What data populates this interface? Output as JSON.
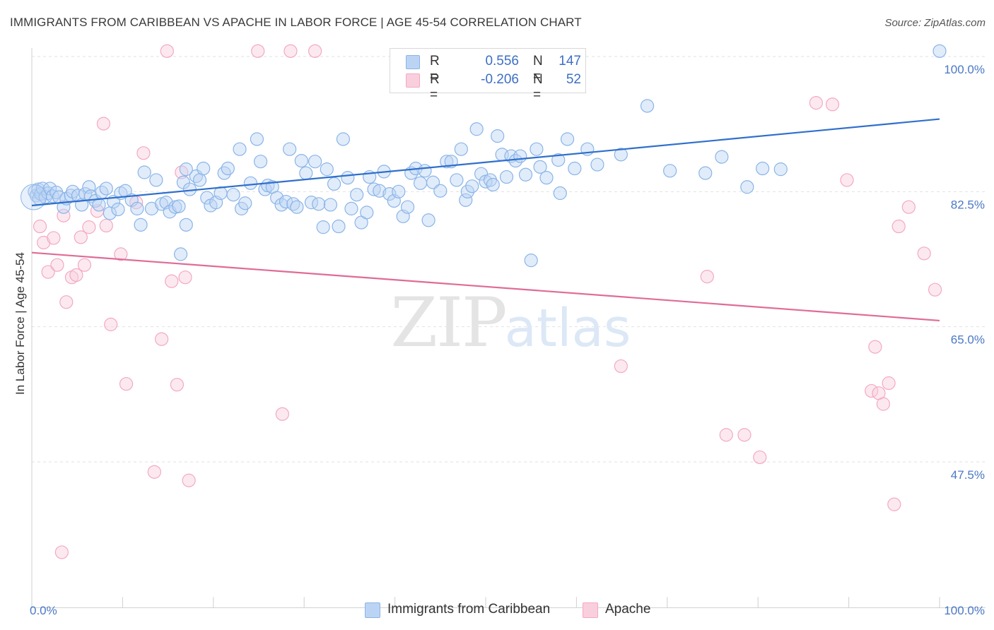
{
  "header": {
    "title": "IMMIGRANTS FROM CARIBBEAN VS APACHE IN LABOR FORCE | AGE 45-54 CORRELATION CHART",
    "source": "Source: ZipAtlas.com"
  },
  "watermark": {
    "part1": "ZIP",
    "part2": "atlas"
  },
  "legend": {
    "r_label": "R =",
    "n_label": "N =",
    "rows": [
      {
        "r": "0.556",
        "n": "147"
      },
      {
        "r": "-0.206",
        "n": "52"
      }
    ]
  },
  "chart_data": {
    "type": "scatter",
    "title": "IMMIGRANTS FROM CARIBBEAN VS APACHE IN LABOR FORCE | AGE 45-54 CORRELATION CHART",
    "ylabel": "In Labor Force | Age 45-54",
    "xlabel": "",
    "xlim": [
      0,
      100
    ],
    "ylim": [
      30,
      102
    ],
    "x_tick_labels": [
      "0.0%",
      "100.0%"
    ],
    "y_ticks": [
      100,
      82.5,
      65,
      47.5
    ],
    "y_tick_labels": [
      "100.0%",
      "82.5%",
      "65.0%",
      "47.5%"
    ],
    "grid": true,
    "legend_position": "top-center",
    "series": [
      {
        "name": "Immigrants from Caribbean",
        "color": "#8ab4e8",
        "line_color": "#2f6fcc",
        "r": 0.556,
        "n": 147,
        "trend": [
          [
            0,
            80.7
          ],
          [
            100,
            91.9
          ]
        ],
        "points": [
          [
            0.3,
            82.5
          ],
          [
            0.5,
            82.0
          ],
          [
            0.7,
            82.8
          ],
          [
            0.8,
            81.6
          ],
          [
            1.0,
            82.2
          ],
          [
            1.2,
            82.9
          ],
          [
            1.5,
            81.8
          ],
          [
            1.8,
            82.3
          ],
          [
            2.0,
            82.9
          ],
          [
            2.3,
            81.9
          ],
          [
            2.7,
            82.4
          ],
          [
            3.0,
            81.8
          ],
          [
            3.5,
            80.5
          ],
          [
            3.8,
            81.6
          ],
          [
            4.3,
            82.0
          ],
          [
            4.5,
            82.5
          ],
          [
            5.1,
            82.0
          ],
          [
            5.5,
            80.8
          ],
          [
            5.9,
            82.2
          ],
          [
            6.3,
            83.1
          ],
          [
            6.5,
            81.9
          ],
          [
            7.0,
            81.3
          ],
          [
            7.4,
            80.8
          ],
          [
            7.7,
            82.4
          ],
          [
            8.2,
            82.9
          ],
          [
            8.6,
            79.7
          ],
          [
            9.0,
            81.2
          ],
          [
            9.5,
            80.2
          ],
          [
            9.8,
            82.3
          ],
          [
            10.3,
            82.6
          ],
          [
            11.0,
            81.4
          ],
          [
            11.6,
            80.3
          ],
          [
            12.0,
            78.2
          ],
          [
            12.4,
            85.0
          ],
          [
            13.2,
            80.3
          ],
          [
            13.7,
            84.0
          ],
          [
            14.3,
            80.9
          ],
          [
            14.8,
            81.1
          ],
          [
            15.2,
            79.9
          ],
          [
            15.8,
            80.5
          ],
          [
            16.2,
            80.6
          ],
          [
            16.7,
            83.7
          ],
          [
            17.0,
            78.2
          ],
          [
            17.4,
            82.8
          ],
          [
            18.1,
            84.5
          ],
          [
            18.5,
            84.0
          ],
          [
            16.4,
            74.4
          ],
          [
            17.0,
            85.4
          ],
          [
            18.9,
            85.5
          ],
          [
            19.3,
            81.7
          ],
          [
            19.7,
            80.7
          ],
          [
            20.3,
            81.1
          ],
          [
            20.8,
            82.3
          ],
          [
            21.2,
            84.9
          ],
          [
            21.6,
            85.5
          ],
          [
            22.2,
            82.1
          ],
          [
            22.9,
            88.0
          ],
          [
            23.1,
            80.3
          ],
          [
            23.5,
            81.0
          ],
          [
            24.1,
            83.6
          ],
          [
            24.8,
            89.3
          ],
          [
            25.2,
            86.4
          ],
          [
            25.7,
            82.8
          ],
          [
            26.0,
            83.3
          ],
          [
            26.5,
            83.1
          ],
          [
            27.0,
            81.7
          ],
          [
            27.5,
            80.8
          ],
          [
            28.0,
            81.2
          ],
          [
            28.4,
            88.0
          ],
          [
            28.8,
            80.9
          ],
          [
            29.2,
            80.5
          ],
          [
            29.7,
            86.5
          ],
          [
            30.2,
            84.9
          ],
          [
            30.8,
            81.1
          ],
          [
            31.2,
            86.4
          ],
          [
            31.6,
            80.9
          ],
          [
            32.1,
            77.9
          ],
          [
            32.5,
            85.4
          ],
          [
            32.9,
            80.8
          ],
          [
            33.3,
            83.5
          ],
          [
            33.8,
            78.0
          ],
          [
            34.3,
            89.3
          ],
          [
            34.8,
            84.3
          ],
          [
            35.2,
            80.3
          ],
          [
            35.8,
            82.1
          ],
          [
            36.3,
            78.5
          ],
          [
            36.9,
            79.8
          ],
          [
            37.2,
            84.4
          ],
          [
            37.7,
            82.8
          ],
          [
            38.3,
            82.6
          ],
          [
            38.8,
            85.1
          ],
          [
            39.4,
            82.2
          ],
          [
            39.9,
            81.3
          ],
          [
            40.4,
            82.5
          ],
          [
            40.9,
            79.3
          ],
          [
            41.4,
            80.5
          ],
          [
            41.8,
            84.9
          ],
          [
            42.3,
            85.5
          ],
          [
            42.8,
            83.6
          ],
          [
            43.3,
            85.2
          ],
          [
            43.7,
            78.8
          ],
          [
            44.2,
            83.7
          ],
          [
            45.0,
            82.6
          ],
          [
            45.7,
            86.4
          ],
          [
            46.2,
            86.4
          ],
          [
            46.8,
            84.0
          ],
          [
            47.3,
            88.0
          ],
          [
            47.8,
            81.4
          ],
          [
            48.0,
            82.5
          ],
          [
            48.5,
            83.2
          ],
          [
            49.0,
            90.6
          ],
          [
            49.5,
            84.8
          ],
          [
            50.0,
            83.8
          ],
          [
            50.5,
            84.0
          ],
          [
            50.8,
            83.4
          ],
          [
            51.3,
            89.7
          ],
          [
            51.8,
            87.3
          ],
          [
            52.3,
            84.4
          ],
          [
            52.8,
            87.1
          ],
          [
            53.3,
            86.5
          ],
          [
            53.8,
            87.1
          ],
          [
            54.4,
            84.7
          ],
          [
            55.0,
            73.6
          ],
          [
            55.6,
            88.0
          ],
          [
            56.0,
            85.7
          ],
          [
            56.7,
            84.3
          ],
          [
            58.0,
            86.6
          ],
          [
            58.2,
            82.3
          ],
          [
            59.0,
            89.3
          ],
          [
            59.8,
            85.5
          ],
          [
            61.2,
            88.0
          ],
          [
            62.3,
            86.0
          ],
          [
            64.9,
            87.3
          ],
          [
            67.8,
            93.6
          ],
          [
            70.3,
            85.2
          ],
          [
            74.2,
            84.9
          ],
          [
            76.0,
            87.0
          ],
          [
            78.8,
            83.1
          ],
          [
            80.5,
            85.5
          ],
          [
            82.5,
            85.4
          ],
          [
            100,
            100.7
          ]
        ]
      },
      {
        "name": "Apache",
        "color": "#f4a8c2",
        "line_color": "#e06b96",
        "r": -0.206,
        "n": 52,
        "trend": [
          [
            0,
            74.6
          ],
          [
            100,
            65.8
          ]
        ],
        "points": [
          [
            0.9,
            78.0
          ],
          [
            1.3,
            75.9
          ],
          [
            1.8,
            72.1
          ],
          [
            2.4,
            76.5
          ],
          [
            2.8,
            73.0
          ],
          [
            3.5,
            79.4
          ],
          [
            3.8,
            68.2
          ],
          [
            4.4,
            71.4
          ],
          [
            4.9,
            71.7
          ],
          [
            5.4,
            76.6
          ],
          [
            5.8,
            73.0
          ],
          [
            6.3,
            77.9
          ],
          [
            7.2,
            80.0
          ],
          [
            7.9,
            91.3
          ],
          [
            8.2,
            78.1
          ],
          [
            8.7,
            65.3
          ],
          [
            9.8,
            74.4
          ],
          [
            10.4,
            57.6
          ],
          [
            11.5,
            81.1
          ],
          [
            12.3,
            87.5
          ],
          [
            13.5,
            46.2
          ],
          [
            14.3,
            63.4
          ],
          [
            14.9,
            100.7
          ],
          [
            15.4,
            70.9
          ],
          [
            16.0,
            57.5
          ],
          [
            16.5,
            85.0
          ],
          [
            16.9,
            71.4
          ],
          [
            17.3,
            45.1
          ],
          [
            24.9,
            100.7
          ],
          [
            28.5,
            100.7
          ],
          [
            31.2,
            100.7
          ],
          [
            27.6,
            53.7
          ],
          [
            64.9,
            59.9
          ],
          [
            74.4,
            71.5
          ],
          [
            76.5,
            51.0
          ],
          [
            78.5,
            51.0
          ],
          [
            80.2,
            48.1
          ],
          [
            86.4,
            94.0
          ],
          [
            88.2,
            93.8
          ],
          [
            89.8,
            84.0
          ],
          [
            92.5,
            56.7
          ],
          [
            92.9,
            62.4
          ],
          [
            93.3,
            56.4
          ],
          [
            93.8,
            55.0
          ],
          [
            94.4,
            57.7
          ],
          [
            95.0,
            42.0
          ],
          [
            95.5,
            78.0
          ],
          [
            96.6,
            80.5
          ],
          [
            98.3,
            74.5
          ],
          [
            99.5,
            69.8
          ],
          [
            3.3,
            35.8
          ]
        ]
      }
    ]
  }
}
